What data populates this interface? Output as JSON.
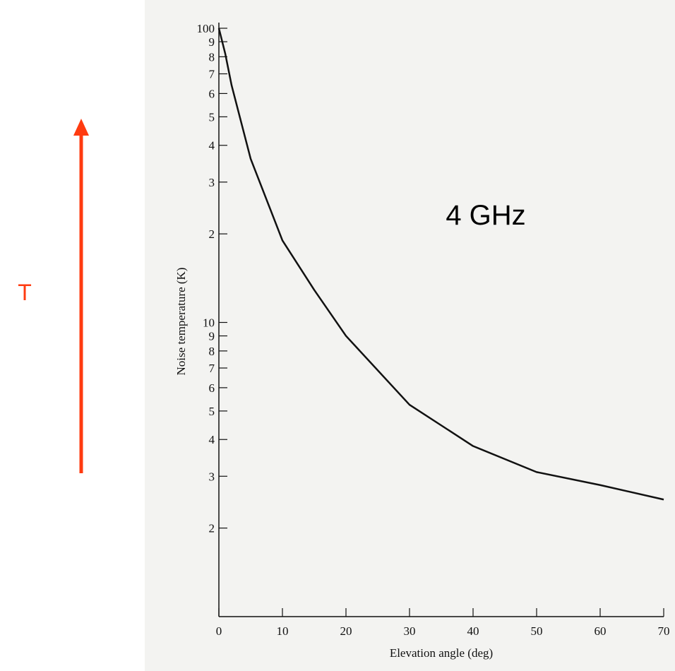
{
  "chart_data": {
    "type": "line",
    "x_label": "Elevation angle (deg)",
    "y_label": "Noise temperature (K)",
    "annotations": [
      "4 GHz",
      "T"
    ],
    "x": [
      0,
      1,
      2,
      5,
      10,
      15,
      20,
      30,
      40,
      50,
      60,
      70
    ],
    "series": [
      {
        "name": "4 GHz",
        "color": "#111111",
        "values": [
          100,
          82,
          64,
          36,
          19,
          12.9,
          9,
          5.25,
          3.8,
          3.1,
          2.8,
          2.5
        ]
      }
    ],
    "xlim": [
      0,
      70
    ],
    "xticks": [
      0,
      10,
      20,
      30,
      40,
      50,
      60,
      70
    ],
    "ylim": [
      1,
      100
    ],
    "log_y": true,
    "yticks": [
      2,
      3,
      4,
      5,
      6,
      7,
      8,
      9,
      10,
      {
        "value": 20,
        "label": "2"
      },
      {
        "value": 30,
        "label": "3"
      },
      {
        "value": 40,
        "label": "4"
      },
      {
        "value": 50,
        "label": "5"
      },
      {
        "value": 60,
        "label": "6"
      },
      {
        "value": 70,
        "label": "7"
      },
      {
        "value": 80,
        "label": "8"
      },
      {
        "value": 90,
        "label": "9"
      },
      100
    ]
  }
}
